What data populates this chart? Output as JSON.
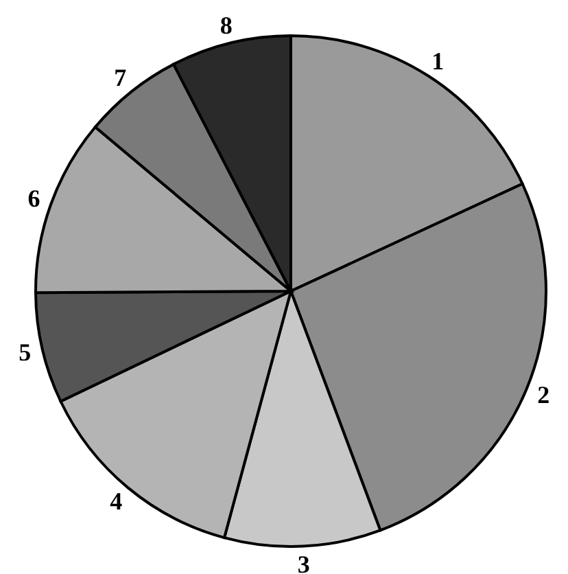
{
  "chart_data": {
    "type": "pie",
    "categories": [
      "1",
      "2",
      "3",
      "4",
      "5",
      "6",
      "7",
      "8"
    ],
    "values": [
      18.1,
      26.2,
      9.9,
      13.7,
      7.0,
      11.2,
      6.3,
      7.6
    ],
    "colors": [
      "#9a9a9a",
      "#8c8c8c",
      "#c8c8c8",
      "#b4b4b4",
      "#555555",
      "#a8a8a8",
      "#7a7a7a",
      "#2a2a2a"
    ],
    "legend": false
  }
}
